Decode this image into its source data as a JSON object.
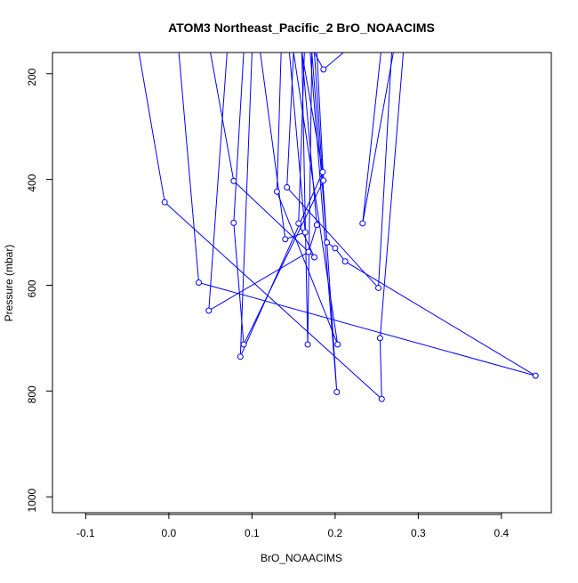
{
  "chart_data": {
    "type": "line",
    "title": "ATOM3 Northeast_Pacific_2 BrO_NOAACIMS",
    "xlabel": "BrO_NOAACIMS",
    "ylabel": "Pressure (mbar)",
    "xlim": [
      -0.14,
      0.46
    ],
    "ylim": [
      1030,
      160
    ],
    "y_reversed": true,
    "x_ticks": [
      -0.1,
      0.0,
      0.1,
      0.2,
      0.3,
      0.4
    ],
    "x_tick_labels": [
      "-0.1",
      "0.0",
      "0.1",
      "0.2",
      "0.3",
      "0.4"
    ],
    "y_ticks": [
      200,
      400,
      600,
      800,
      1000
    ],
    "y_tick_labels": [
      "200",
      "400",
      "600",
      "800",
      "1000"
    ],
    "grid": false,
    "legend": "none",
    "line_color": "#0000ff",
    "marker": "open-circle",
    "series": [
      {
        "x": [
          -0.036,
          -0.005,
          0.256,
          0.254,
          0.282
        ],
        "y": [
          160,
          443,
          815,
          700,
          160
        ]
      },
      {
        "x": [
          0.012,
          0.036,
          0.441,
          0.212,
          0.2,
          0.19,
          0.172
        ],
        "y": [
          160,
          595,
          771,
          555,
          530,
          519,
          160
        ]
      },
      {
        "x": [
          0.05,
          0.078,
          0.175,
          0.156,
          0.163
        ],
        "y": [
          160,
          403,
          547,
          483,
          160
        ]
      },
      {
        "x": [
          0.07,
          0.048,
          0.168,
          0.178,
          0.16
        ],
        "y": [
          160,
          648,
          537,
          486,
          160
        ]
      },
      {
        "x": [
          0.09,
          0.078,
          0.09,
          0.186,
          0.178
        ],
        "y": [
          160,
          482,
          712,
          402,
          160
        ]
      },
      {
        "x": [
          0.1,
          0.086,
          0.185,
          0.16
        ],
        "y": [
          160,
          735,
          386,
          160
        ]
      },
      {
        "x": [
          0.135,
          0.13,
          0.203,
          0.15
        ],
        "y": [
          160,
          423,
          712,
          160
        ]
      },
      {
        "x": [
          0.11,
          0.14,
          0.164,
          0.145
        ],
        "y": [
          160,
          513,
          500,
          160
        ]
      },
      {
        "x": [
          0.15,
          0.142,
          0.252,
          0.268
        ],
        "y": [
          160,
          415,
          605,
          160
        ]
      },
      {
        "x": [
          0.17,
          0.202,
          0.175
        ],
        "y": [
          160,
          802,
          160
        ]
      },
      {
        "x": [
          0.16,
          0.167,
          0.172
        ],
        "y": [
          160,
          712,
          160
        ]
      },
      {
        "x": [
          0.175,
          0.186,
          0.21
        ],
        "y": [
          160,
          192,
          160
        ]
      },
      {
        "x": [
          0.255,
          0.233,
          0.27
        ],
        "y": [
          160,
          483,
          160
        ]
      }
    ]
  }
}
